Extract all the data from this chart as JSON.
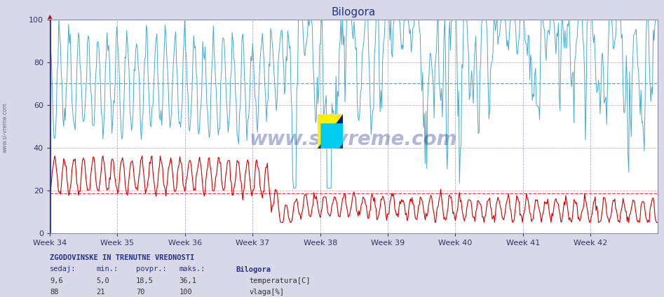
{
  "title": "Bilogora",
  "bg_color": "#d8d8e8",
  "plot_bg_color": "#ffffff",
  "temp_color": "#cc0000",
  "vlaga_color": "#44aacc",
  "temp_avg": 18.5,
  "vlaga_avg": 70,
  "xlabels": [
    "Week 34",
    "Week 35",
    "Week 36",
    "Week 37",
    "Week 38",
    "Week 39",
    "Week 40",
    "Week 41",
    "Week 42"
  ],
  "yticks": [
    0,
    20,
    40,
    60,
    80,
    100
  ],
  "ymin": 0,
  "ymax": 100,
  "grid_color_h": "#ddaaaa",
  "grid_color_v": "#aaaacc",
  "hline_temp_color": "#dd4444",
  "hline_vlaga_color": "#44aacc",
  "watermark": "www.si-vreme.com",
  "footer_label": "ZGODOVINSKE IN TRENUTNE VREDNOSTI",
  "col_headers": [
    "sedaj:",
    "min.:",
    "povpr.:",
    "maks.:",
    "Bilogora"
  ],
  "row1": [
    "9,6",
    "5,0",
    "18,5",
    "36,1"
  ],
  "row2": [
    "88",
    "21",
    "70",
    "100"
  ],
  "legend_temp": "temperatura[C]",
  "legend_vlaga": "vlaga[%]",
  "n_points": 744,
  "seed": 42
}
